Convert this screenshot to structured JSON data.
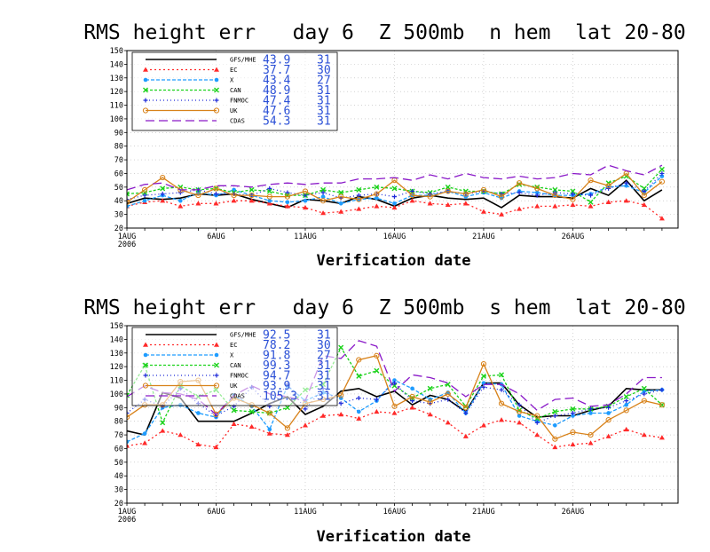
{
  "chart_data": [
    {
      "type": "line",
      "title": "RMS height err   day 6  Z 500mb  n hem  lat 20-80",
      "xlabel": "Verification date",
      "ylabel": "",
      "ylim": [
        20,
        150
      ],
      "yticks": [
        20,
        30,
        40,
        50,
        60,
        70,
        80,
        90,
        100,
        110,
        120,
        130,
        140,
        150
      ],
      "xticks": [
        {
          "day": 1,
          "label": "1AUG",
          "sub": "2006"
        },
        {
          "day": 6,
          "label": "6AUG"
        },
        {
          "day": 11,
          "label": "11AUG"
        },
        {
          "day": 16,
          "label": "16AUG"
        },
        {
          "day": 21,
          "label": "21AUG"
        },
        {
          "day": 26,
          "label": "26AUG"
        }
      ],
      "xlim": [
        1,
        31.9
      ],
      "x": [
        1,
        2,
        3,
        4,
        5,
        6,
        7,
        8,
        9,
        10,
        11,
        12,
        13,
        14,
        15,
        16,
        17,
        18,
        19,
        20,
        21,
        22,
        23,
        24,
        25,
        26,
        27,
        28,
        29,
        30,
        31
      ],
      "grid": true,
      "legend_position": "top-left",
      "series": [
        {
          "name": "GFS/MHE",
          "mean": "43.9",
          "count": "31",
          "color": "#000000",
          "dash": "",
          "marker": "none",
          "values": [
            38,
            42,
            41,
            42,
            45,
            44,
            45,
            41,
            38,
            35,
            41,
            40,
            38,
            43,
            41,
            36,
            42,
            44,
            42,
            41,
            42,
            35,
            44,
            43,
            43,
            42,
            49,
            44,
            55,
            40,
            48
          ]
        },
        {
          "name": "EC",
          "mean": "37.7",
          "count": "30",
          "color": "#ff2a2a",
          "dash": "2,3",
          "marker": "tri",
          "values": [
            36,
            39,
            40,
            36,
            38,
            38,
            40,
            40,
            38,
            36,
            35,
            31,
            32,
            34,
            36,
            35,
            40,
            38,
            37,
            38,
            32,
            30,
            34,
            36,
            36,
            37,
            36,
            39,
            40,
            37,
            27
          ]
        },
        {
          "name": "X",
          "mean": "43.4",
          "count": "27",
          "color": "#1e9cff",
          "dash": "4,2",
          "marker": "dot",
          "values": [
            36,
            40,
            44,
            40,
            46,
            44,
            48,
            44,
            40,
            39,
            40,
            43,
            38,
            41,
            42,
            38,
            44,
            44,
            47,
            43,
            46,
            42,
            47,
            46,
            44,
            44,
            45,
            50,
            51,
            46,
            58
          ]
        },
        {
          "name": "CAN",
          "mean": "48.9",
          "count": "31",
          "color": "#1ad21a",
          "dash": "3,2",
          "marker": "x",
          "values": [
            45,
            46,
            49,
            50,
            48,
            49,
            46,
            48,
            47,
            44,
            44,
            48,
            46,
            48,
            50,
            49,
            47,
            46,
            50,
            47,
            47,
            45,
            52,
            50,
            48,
            47,
            39,
            53,
            58,
            49,
            63
          ]
        },
        {
          "name": "FNMOC",
          "mean": "47.4",
          "count": "31",
          "color": "#1f2ad8",
          "dash": "1,3",
          "marker": "plus",
          "values": [
            41,
            44,
            45,
            46,
            48,
            45,
            45,
            44,
            49,
            46,
            44,
            46,
            42,
            44,
            45,
            43,
            47,
            45,
            47,
            45,
            47,
            45,
            46,
            44,
            46,
            45,
            44,
            49,
            53,
            47,
            60
          ]
        },
        {
          "name": "UK",
          "mean": "47.6",
          "count": "31",
          "color": "#d8821a",
          "dash": "",
          "marker": "circle",
          "values": [
            39,
            48,
            57,
            48,
            44,
            49,
            44,
            44,
            43,
            43,
            47,
            40,
            43,
            41,
            45,
            55,
            44,
            43,
            47,
            45,
            48,
            43,
            53,
            49,
            44,
            41,
            55,
            51,
            60,
            44,
            54
          ]
        },
        {
          "name": "CDAS",
          "mean": "54.3",
          "count": "31",
          "color": "#8a19c8",
          "dash": "10,5",
          "marker": "none",
          "values": [
            48,
            52,
            53,
            48,
            48,
            51,
            51,
            50,
            52,
            53,
            52,
            53,
            53,
            56,
            56,
            57,
            55,
            59,
            56,
            60,
            57,
            56,
            58,
            56,
            57,
            60,
            59,
            66,
            62,
            59,
            66
          ]
        }
      ]
    },
    {
      "type": "line",
      "title": "RMS height err   day 6  Z 500mb  s hem  lat 20-80",
      "xlabel": "Verification date",
      "ylabel": "",
      "ylim": [
        20,
        150
      ],
      "yticks": [
        20,
        30,
        40,
        50,
        60,
        70,
        80,
        90,
        100,
        110,
        120,
        130,
        140,
        150
      ],
      "xticks": [
        {
          "day": 1,
          "label": "1AUG",
          "sub": "2006"
        },
        {
          "day": 6,
          "label": "6AUG"
        },
        {
          "day": 11,
          "label": "11AUG"
        },
        {
          "day": 16,
          "label": "16AUG"
        },
        {
          "day": 21,
          "label": "21AUG"
        },
        {
          "day": 26,
          "label": "26AUG"
        }
      ],
      "xlim": [
        1,
        31.9
      ],
      "x": [
        1,
        2,
        3,
        4,
        5,
        6,
        7,
        8,
        9,
        10,
        11,
        12,
        13,
        14,
        15,
        16,
        17,
        18,
        19,
        20,
        21,
        22,
        23,
        24,
        25,
        26,
        27,
        28,
        29,
        30,
        31
      ],
      "grid": true,
      "legend_position": "top-left",
      "series": [
        {
          "name": "GFS/MHE",
          "mean": "92.5",
          "count": "31",
          "color": "#000000",
          "dash": "",
          "marker": "none",
          "values": [
            73,
            70,
            101,
            97,
            80,
            80,
            80,
            86,
            93,
            98,
            85,
            91,
            102,
            104,
            98,
            102,
            92,
            99,
            96,
            87,
            108,
            108,
            92,
            83,
            84,
            84,
            88,
            91,
            104,
            103,
            103
          ]
        },
        {
          "name": "EC",
          "mean": "78.2",
          "count": "30",
          "color": "#ff2a2a",
          "dash": "2,3",
          "marker": "tri",
          "values": [
            62,
            64,
            73,
            70,
            63,
            61,
            78,
            76,
            71,
            70,
            77,
            84,
            85,
            82,
            87,
            86,
            90,
            85,
            79,
            69,
            77,
            81,
            79,
            70,
            61,
            63,
            64,
            69,
            74,
            70,
            68
          ]
        },
        {
          "name": "X",
          "mean": "91.8",
          "count": "27",
          "color": "#1e9cff",
          "dash": "4,2",
          "marker": "dot",
          "values": [
            65,
            71,
            90,
            92,
            86,
            83,
            99,
            91,
            74,
            106,
            95,
            101,
            97,
            87,
            95,
            110,
            104,
            96,
            101,
            86,
            108,
            107,
            84,
            80,
            77,
            84,
            86,
            86,
            92,
            102,
            103
          ]
        },
        {
          "name": "CAN",
          "mean": "99.3",
          "count": "31",
          "color": "#1ad21a",
          "dash": "3,2",
          "marker": "x",
          "values": [
            99,
            121,
            79,
            106,
            98,
            103,
            88,
            87,
            86,
            90,
            103,
            107,
            134,
            113,
            117,
            106,
            97,
            104,
            107,
            91,
            113,
            114,
            88,
            82,
            87,
            89,
            89,
            91,
            98,
            104,
            92
          ]
        },
        {
          "name": "FNMOC",
          "mean": "94.7",
          "count": "31",
          "color": "#1f2ad8",
          "dash": "1,3",
          "marker": "plus",
          "values": [
            86,
            96,
            91,
            104,
            93,
            84,
            91,
            105,
            91,
            107,
            89,
            104,
            93,
            97,
            96,
            108,
            95,
            93,
            96,
            86,
            105,
            103,
            92,
            79,
            84,
            86,
            89,
            90,
            95,
            100,
            103
          ]
        },
        {
          "name": "UK",
          "mean": "93.9",
          "count": "31",
          "color": "#d8821a",
          "dash": "",
          "marker": "circle",
          "values": [
            83,
            92,
            92,
            109,
            110,
            85,
            97,
            92,
            86,
            75,
            93,
            96,
            99,
            125,
            128,
            91,
            98,
            94,
            100,
            90,
            122,
            93,
            87,
            84,
            67,
            72,
            70,
            81,
            88,
            95,
            92
          ]
        },
        {
          "name": "CDAS",
          "mean": "105.3",
          "count": "31",
          "color": "#8a19c8",
          "dash": "10,5",
          "marker": "none",
          "values": [
            98,
            106,
            101,
            100,
            96,
            85,
            99,
            106,
            100,
            98,
            95,
            128,
            126,
            139,
            135,
            102,
            114,
            112,
            108,
            98,
            107,
            107,
            100,
            88,
            96,
            97,
            91,
            92,
            100,
            112,
            112
          ]
        }
      ]
    }
  ]
}
